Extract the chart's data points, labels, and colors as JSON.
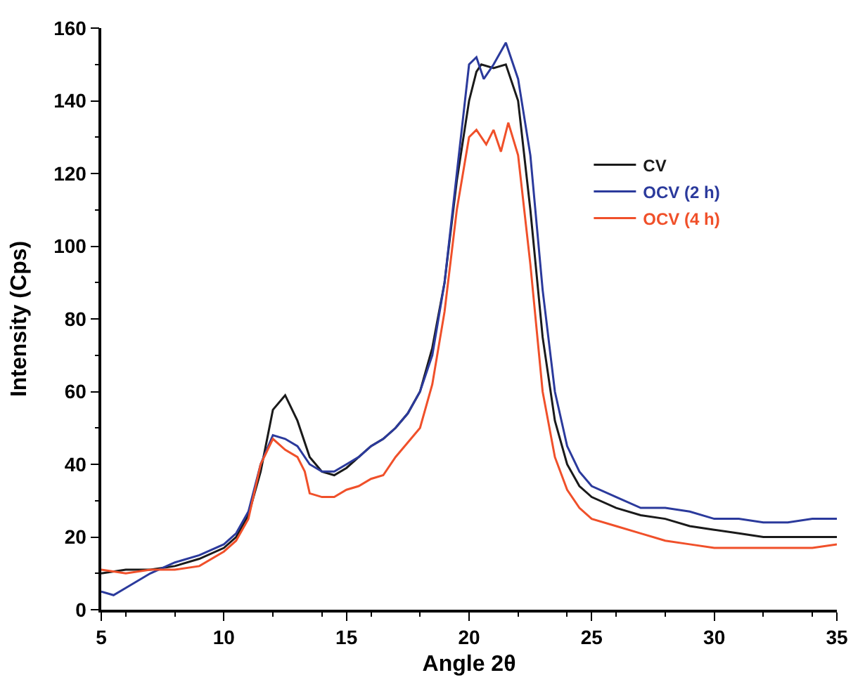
{
  "chart_data": {
    "type": "line",
    "xlabel": "Angle 2θ",
    "ylabel": "Intensity (Cps)",
    "xlim": [
      5,
      35
    ],
    "ylim": [
      0,
      160
    ],
    "xticks": [
      5,
      10,
      15,
      20,
      25,
      30,
      35
    ],
    "yticks": [
      0,
      20,
      40,
      60,
      80,
      100,
      120,
      140,
      160
    ],
    "legend": "right",
    "marker": "none",
    "line_style": "solid",
    "series": [
      {
        "name": "CV",
        "color": "#1a1a1a",
        "x": [
          5,
          6,
          7,
          8,
          9,
          10,
          10.5,
          11,
          11.5,
          12,
          12.5,
          13,
          13.5,
          14,
          14.5,
          15,
          15.5,
          16,
          16.5,
          17,
          17.5,
          18,
          18.5,
          19,
          19.5,
          20,
          20.3,
          20.5,
          21,
          21.5,
          22,
          22.5,
          23,
          23.5,
          24,
          24.5,
          25,
          26,
          27,
          28,
          29,
          30,
          31,
          32,
          33,
          34,
          35
        ],
        "values": [
          10,
          11,
          11,
          12,
          14,
          17,
          20,
          26,
          38,
          55,
          59,
          52,
          42,
          38,
          37,
          39,
          42,
          45,
          47,
          50,
          54,
          60,
          72,
          90,
          118,
          140,
          148,
          150,
          149,
          150,
          140,
          110,
          75,
          52,
          40,
          34,
          31,
          28,
          26,
          25,
          23,
          22,
          21,
          20,
          20,
          20,
          20
        ]
      },
      {
        "name": "OCV (2 h)",
        "color": "#2b3a9c",
        "x": [
          5,
          5.5,
          6,
          7,
          8,
          9,
          10,
          10.5,
          11,
          11.5,
          12,
          12.5,
          13,
          13.5,
          14,
          14.5,
          15,
          15.5,
          16,
          16.5,
          17,
          17.5,
          18,
          18.5,
          19,
          19.5,
          20,
          20.3,
          20.6,
          21,
          21.5,
          22,
          22.5,
          23,
          23.5,
          24,
          24.5,
          25,
          26,
          27,
          28,
          29,
          30,
          31,
          32,
          33,
          34,
          35
        ],
        "values": [
          5,
          4,
          6,
          10,
          13,
          15,
          18,
          21,
          27,
          40,
          48,
          47,
          45,
          40,
          38,
          38,
          40,
          42,
          45,
          47,
          50,
          54,
          60,
          70,
          90,
          120,
          150,
          152,
          146,
          150,
          156,
          146,
          125,
          88,
          60,
          45,
          38,
          34,
          31,
          28,
          28,
          27,
          25,
          25,
          24,
          24,
          25,
          25
        ]
      },
      {
        "name": "OCV (4 h)",
        "color": "#f0502a",
        "x": [
          5,
          6,
          7,
          8,
          9,
          10,
          10.5,
          11,
          11.5,
          12,
          12.5,
          13,
          13.3,
          13.5,
          14,
          14.5,
          15,
          15.5,
          16,
          16.5,
          17,
          17.5,
          18,
          18.5,
          19,
          19.5,
          20,
          20.3,
          20.7,
          21,
          21.3,
          21.6,
          22,
          22.5,
          23,
          23.5,
          24,
          24.5,
          25,
          26,
          27,
          28,
          29,
          30,
          31,
          32,
          33,
          34,
          35
        ],
        "values": [
          11,
          10,
          11,
          11,
          12,
          16,
          19,
          25,
          40,
          47,
          44,
          42,
          38,
          32,
          31,
          31,
          33,
          34,
          36,
          37,
          42,
          46,
          50,
          62,
          82,
          110,
          130,
          132,
          128,
          132,
          126,
          134,
          125,
          95,
          60,
          42,
          33,
          28,
          25,
          23,
          21,
          19,
          18,
          17,
          17,
          17,
          17,
          17,
          18
        ]
      }
    ]
  }
}
